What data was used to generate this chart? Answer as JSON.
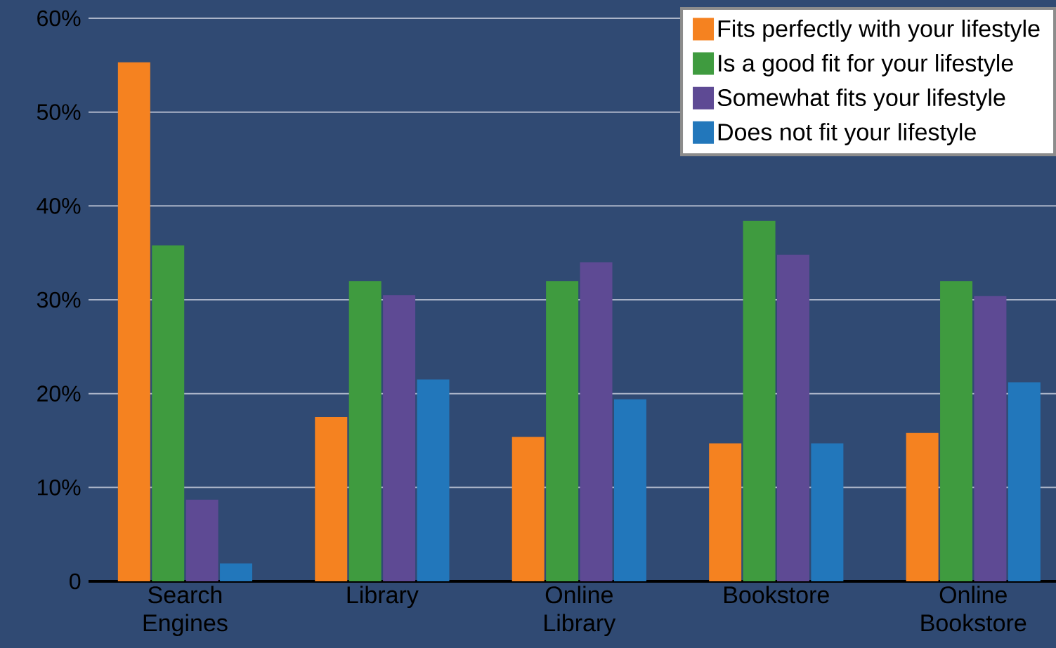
{
  "chart_data": {
    "type": "bar",
    "categories": [
      "Search Engines",
      "Library",
      "Online Library",
      "Bookstore",
      "Online Bookstore"
    ],
    "series": [
      {
        "name": "Fits perfectly with your lifestyle",
        "color": "#f58220",
        "values": [
          55.3,
          17.5,
          15.4,
          14.7,
          15.8
        ]
      },
      {
        "name": "Is a good fit for your lifestyle",
        "color": "#3f9b3f",
        "values": [
          35.8,
          32.0,
          32.0,
          38.4,
          32.0
        ]
      },
      {
        "name": "Somewhat fits your lifestyle",
        "color": "#5e4a94",
        "values": [
          8.7,
          30.5,
          34.0,
          34.8,
          30.4
        ]
      },
      {
        "name": "Does not fit your lifestyle",
        "color": "#2277bb",
        "values": [
          1.9,
          21.5,
          19.4,
          14.7,
          21.2
        ]
      }
    ],
    "ylim": [
      0,
      60
    ],
    "yticks": [
      {
        "value": 0,
        "label": "0"
      },
      {
        "value": 10,
        "label": "10%"
      },
      {
        "value": 20,
        "label": "20%"
      },
      {
        "value": 30,
        "label": "30%"
      },
      {
        "value": 40,
        "label": "40%"
      },
      {
        "value": 50,
        "label": "50%"
      },
      {
        "value": 60,
        "label": "60%"
      }
    ],
    "grid": "y",
    "legend": "top right"
  }
}
